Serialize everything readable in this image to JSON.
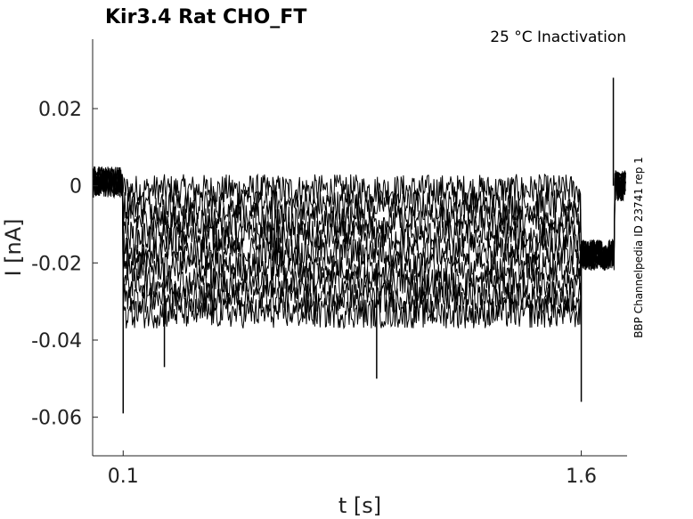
{
  "chart_data": {
    "type": "line",
    "title": "Kir3.4  Rat  CHO_FT",
    "annotation": "25 °C  Inactivation",
    "side_label": "BBP Channelpedia ID 23741 rep 1",
    "xlabel": "t [s]",
    "ylabel": "I [nA]",
    "xlim": [
      0.0,
      1.75
    ],
    "ylim": [
      -0.07,
      0.038
    ],
    "x_ticks": [
      0.1,
      1.6
    ],
    "x_tick_labels": [
      "0.1",
      "1.6"
    ],
    "y_ticks": [
      0.02,
      0,
      -0.02,
      -0.04,
      -0.06
    ],
    "y_tick_labels": [
      "0.02",
      "0",
      "-0.02",
      "-0.04",
      "-0.06"
    ],
    "grid": false,
    "legend": "none",
    "line_color": "#000000",
    "description_of_series": "Overlaid current sweeps: baseline near 0 before 0.1 s, step to levels between about 0 and -0.033 nA from 0.1 s to 1.6 s with noise, return to about -0.018 nA after 1.6 s, then back toward 0 around 1.71 s",
    "series": [
      {
        "values_x": [
          0.0,
          0.1,
          0.1,
          1.6,
          1.6,
          1.7,
          1.71,
          1.75
        ],
        "values_y": [
          0.001,
          0.001,
          -0.001,
          -0.001,
          -0.018,
          -0.018,
          0.0,
          0.0
        ]
      },
      {
        "values_x": [
          0.0,
          0.1,
          0.1,
          1.6,
          1.6,
          1.7,
          1.71,
          1.75
        ],
        "values_y": [
          0.001,
          0.001,
          -0.005,
          -0.005,
          -0.018,
          -0.018,
          0.0,
          0.0
        ]
      },
      {
        "values_x": [
          0.0,
          0.1,
          0.1,
          1.6,
          1.6,
          1.7,
          1.71,
          1.75
        ],
        "values_y": [
          0.001,
          0.001,
          -0.009,
          -0.009,
          -0.018,
          -0.018,
          0.0,
          0.0
        ]
      },
      {
        "values_x": [
          0.0,
          0.1,
          0.1,
          1.6,
          1.6,
          1.7,
          1.71,
          1.75
        ],
        "values_y": [
          0.001,
          0.001,
          -0.013,
          -0.013,
          -0.018,
          -0.018,
          0.0,
          0.0
        ]
      },
      {
        "values_x": [
          0.0,
          0.1,
          0.1,
          1.6,
          1.6,
          1.7,
          1.71,
          1.75
        ],
        "values_y": [
          0.001,
          0.001,
          -0.017,
          -0.017,
          -0.018,
          -0.018,
          0.0,
          0.0
        ]
      },
      {
        "values_x": [
          0.0,
          0.1,
          0.1,
          1.6,
          1.6,
          1.7,
          1.71,
          1.75
        ],
        "values_y": [
          0.001,
          0.001,
          -0.021,
          -0.021,
          -0.018,
          -0.018,
          0.0,
          0.0
        ]
      },
      {
        "values_x": [
          0.0,
          0.1,
          0.1,
          1.6,
          1.6,
          1.7,
          1.71,
          1.75
        ],
        "values_y": [
          0.001,
          0.001,
          -0.025,
          -0.025,
          -0.018,
          -0.018,
          0.0,
          0.0
        ]
      },
      {
        "values_x": [
          0.0,
          0.1,
          0.1,
          1.6,
          1.6,
          1.7,
          1.71,
          1.75
        ],
        "values_y": [
          0.001,
          0.001,
          -0.029,
          -0.029,
          -0.018,
          -0.018,
          0.0,
          0.0
        ]
      },
      {
        "values_x": [
          0.0,
          0.1,
          0.1,
          1.6,
          1.6,
          1.7,
          1.71,
          1.75
        ],
        "values_y": [
          0.001,
          0.001,
          -0.033,
          -0.033,
          -0.018,
          -0.018,
          0.0,
          0.0
        ]
      }
    ],
    "spikes": [
      {
        "x": 0.1,
        "y": -0.059
      },
      {
        "x": 0.235,
        "y": -0.047
      },
      {
        "x": 0.93,
        "y": -0.05
      },
      {
        "x": 1.6,
        "y": -0.056
      },
      {
        "x": 1.705,
        "y": 0.028
      }
    ],
    "noise_amplitude": 0.004
  }
}
